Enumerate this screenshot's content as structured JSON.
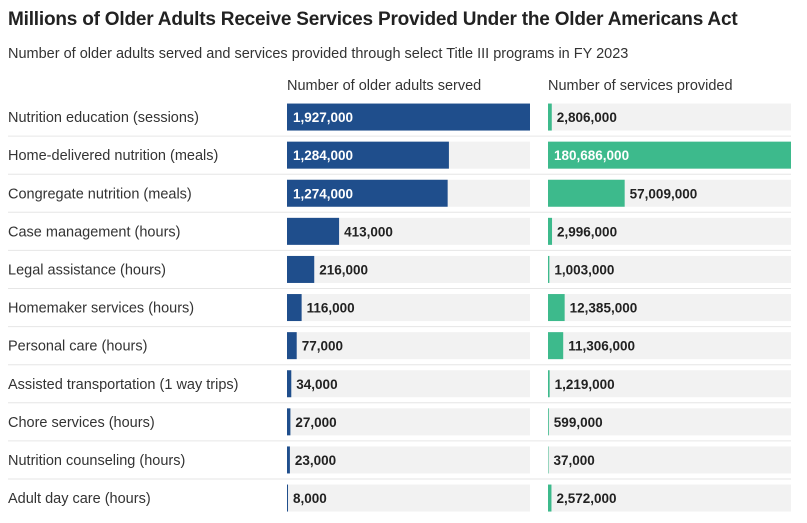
{
  "chart_data": {
    "type": "bar",
    "title": "Millions of Older Adults Receive Services Provided Under the Older Americans Act",
    "subtitle": "Number of older adults served and services provided through select Title III programs in FY 2023",
    "categories": [
      "Nutrition education (sessions)",
      "Home-delivered nutrition (meals)",
      "Congregate nutrition (meals)",
      "Case management (hours)",
      "Legal assistance (hours)",
      "Homemaker services (hours)",
      "Personal care (hours)",
      "Assisted transportation (1 way trips)",
      "Chore services (hours)",
      "Nutrition counseling (hours)",
      "Adult day care (hours)"
    ],
    "series": [
      {
        "name": "Number of older adults served",
        "color": "#1f4e8c",
        "values": [
          1927000,
          1284000,
          1274000,
          413000,
          216000,
          116000,
          77000,
          34000,
          27000,
          23000,
          8000
        ],
        "labels": [
          "1,927,000",
          "1,284,000",
          "1,274,000",
          "413,000",
          "216,000",
          "116,000",
          "77,000",
          "34,000",
          "27,000",
          "23,000",
          "8,000"
        ]
      },
      {
        "name": "Number of services provided",
        "color": "#3dba8c",
        "values": [
          2806000,
          180686000,
          57009000,
          2996000,
          1003000,
          12385000,
          11306000,
          1219000,
          599000,
          37000,
          2572000
        ],
        "labels": [
          "2,806,000",
          "180,686,000",
          "57,009,000",
          "2,996,000",
          "1,003,000",
          "12,385,000",
          "11,306,000",
          "1,219,000",
          "599,000",
          "37,000",
          "2,572,000"
        ]
      }
    ],
    "track_color": "#f2f2f2",
    "separator_color": "#e6e6e6"
  }
}
